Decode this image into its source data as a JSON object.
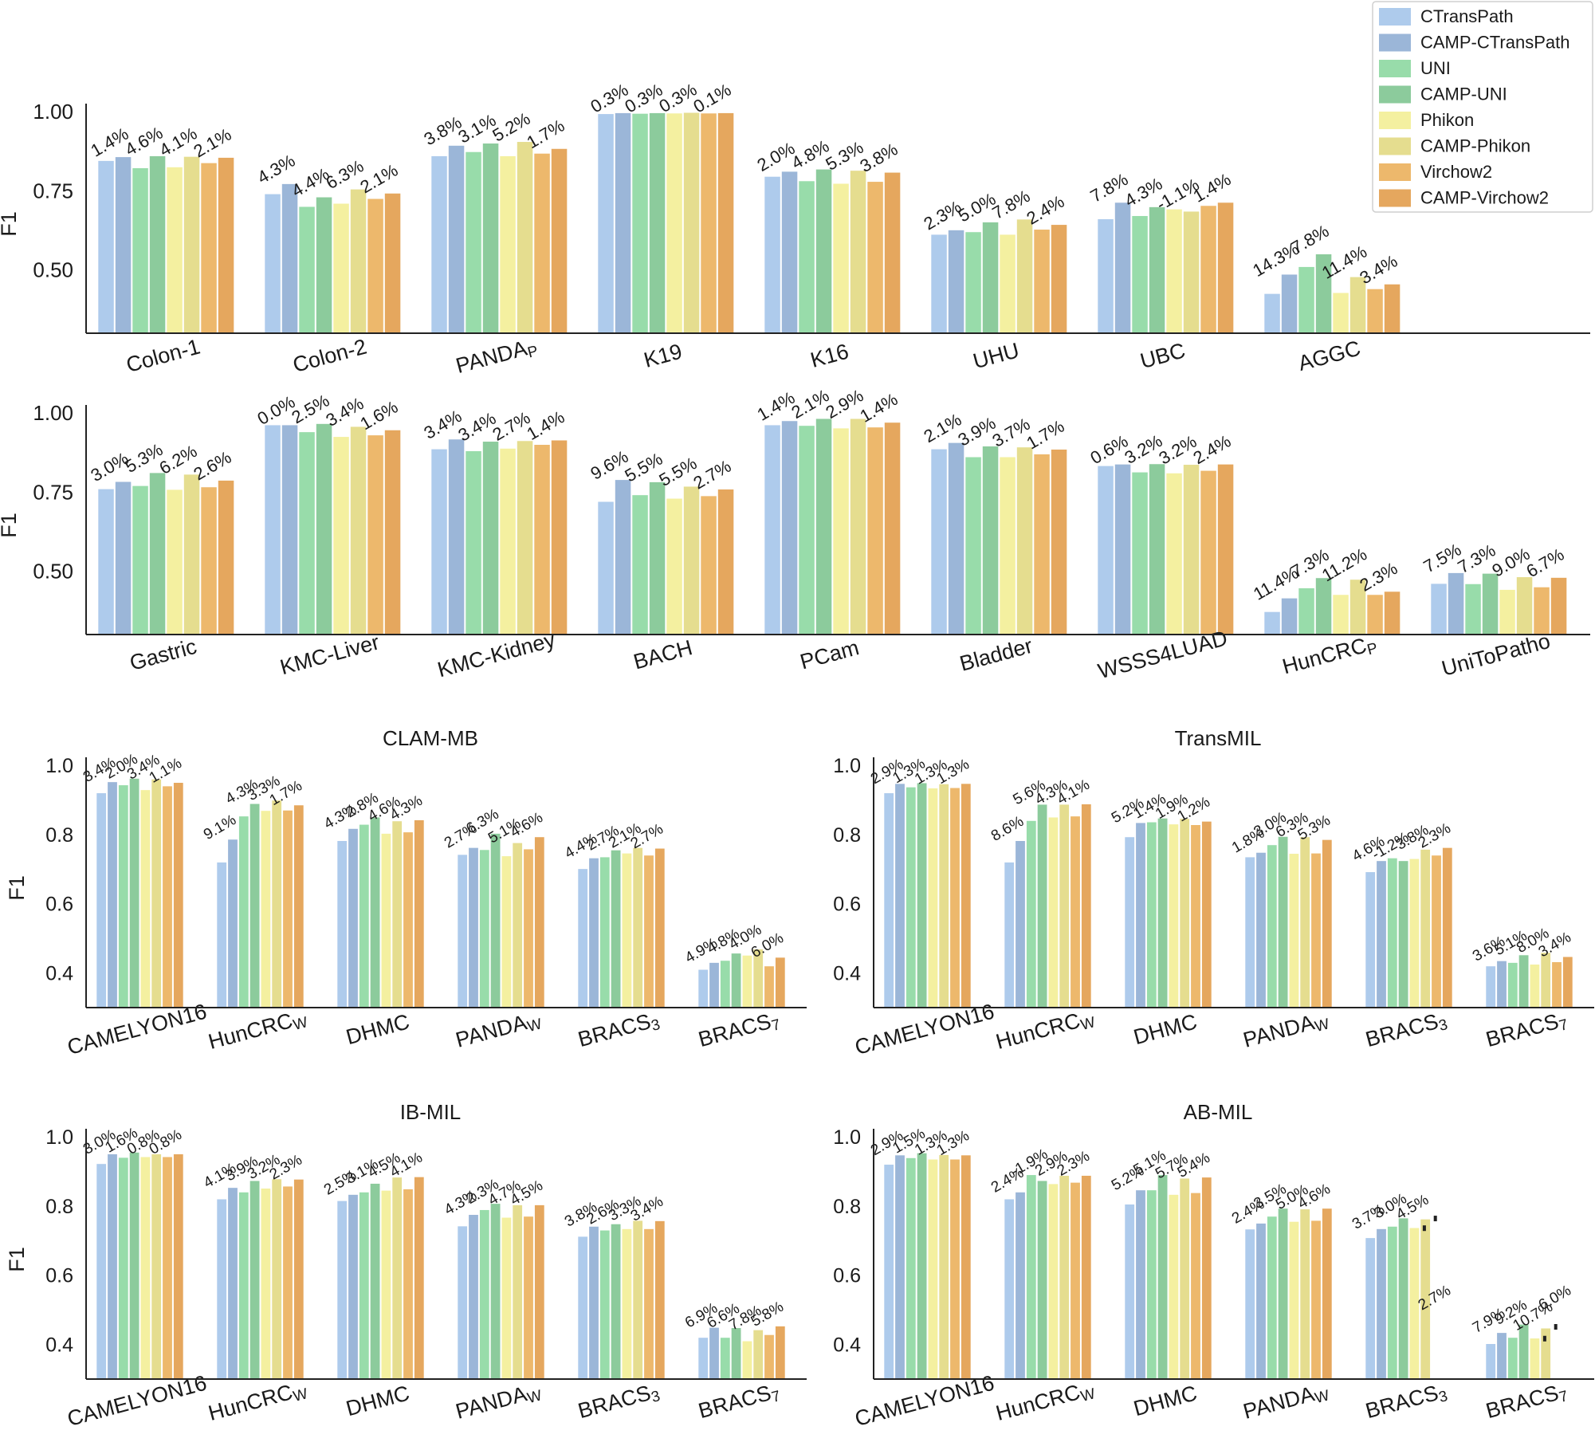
{
  "colors": [
    "#aecbec",
    "#9bb6d8",
    "#98dcaa",
    "#8ccb9c",
    "#f4f0a0",
    "#e5dd8f",
    "#edb86c",
    "#e5a75e"
  ],
  "legend": [
    "CTransPath",
    "CAMP-CTransPath",
    "UNI",
    "CAMP-UNI",
    "Phikon",
    "CAMP-Phikon",
    "Virchow2",
    "CAMP-Virchow2"
  ],
  "chart_data": [
    {
      "type": "bar",
      "title": "",
      "ylabel": "F1",
      "ylim": [
        0.3,
        1.0
      ],
      "yticks": [
        "0.50",
        "0.75",
        "1.00"
      ],
      "categories": [
        {
          "text": "Colon-1",
          "sub": ""
        },
        {
          "text": "Colon-2",
          "sub": ""
        },
        {
          "text": "PANDA",
          "sub": "P"
        },
        {
          "text": "K19",
          "sub": ""
        },
        {
          "text": "K16",
          "sub": ""
        },
        {
          "text": "UHU",
          "sub": ""
        },
        {
          "text": "UBC",
          "sub": ""
        },
        {
          "text": "AGGC",
          "sub": ""
        }
      ],
      "values": [
        [
          0.845,
          0.857,
          0.822,
          0.86,
          0.825,
          0.858,
          0.838,
          0.855
        ],
        [
          0.74,
          0.772,
          0.7,
          0.73,
          0.71,
          0.755,
          0.725,
          0.742
        ],
        [
          0.86,
          0.893,
          0.873,
          0.9,
          0.86,
          0.905,
          0.868,
          0.883
        ],
        [
          0.993,
          0.996,
          0.994,
          0.996,
          0.995,
          0.997,
          0.995,
          0.996
        ],
        [
          0.795,
          0.811,
          0.781,
          0.818,
          0.773,
          0.814,
          0.779,
          0.808
        ],
        [
          0.612,
          0.626,
          0.62,
          0.651,
          0.612,
          0.66,
          0.628,
          0.643
        ],
        [
          0.661,
          0.713,
          0.671,
          0.699,
          0.692,
          0.685,
          0.703,
          0.713
        ],
        [
          0.425,
          0.486,
          0.51,
          0.55,
          0.428,
          0.478,
          0.44,
          0.455
        ]
      ],
      "improvements": [
        [
          "1.4%",
          "4.6%",
          "4.1%",
          "2.1%"
        ],
        [
          "4.3%",
          "4.4%",
          "6.3%",
          "2.1%"
        ],
        [
          "3.8%",
          "3.1%",
          "5.2%",
          "1.7%"
        ],
        [
          "0.3%",
          "0.3%",
          "0.3%",
          "0.1%"
        ],
        [
          "2.0%",
          "4.8%",
          "5.3%",
          "3.8%"
        ],
        [
          "2.3%",
          "5.0%",
          "7.8%",
          "2.4%"
        ],
        [
          "7.8%",
          "4.3%",
          "-1.1%",
          "1.4%"
        ],
        [
          "14.3%",
          "7.8%",
          "11.4%",
          "3.4%"
        ]
      ]
    },
    {
      "type": "bar",
      "title": "",
      "ylabel": "F1",
      "ylim": [
        0.3,
        1.0
      ],
      "yticks": [
        "0.50",
        "0.75",
        "1.00"
      ],
      "categories": [
        {
          "text": "Gastric",
          "sub": ""
        },
        {
          "text": "KMC-Liver",
          "sub": ""
        },
        {
          "text": "KMC-Kidney",
          "sub": ""
        },
        {
          "text": "BACH",
          "sub": ""
        },
        {
          "text": "PCam",
          "sub": ""
        },
        {
          "text": "Bladder",
          "sub": ""
        },
        {
          "text": "WSSS4LUAD",
          "sub": ""
        },
        {
          "text": "HunCRC",
          "sub": "P"
        },
        {
          "text": "UniToPatho",
          "sub": ""
        }
      ],
      "values": [
        [
          0.76,
          0.783,
          0.77,
          0.811,
          0.758,
          0.806,
          0.766,
          0.787
        ],
        [
          0.962,
          0.962,
          0.94,
          0.966,
          0.925,
          0.957,
          0.93,
          0.946
        ],
        [
          0.886,
          0.917,
          0.88,
          0.91,
          0.888,
          0.912,
          0.9,
          0.914
        ],
        [
          0.72,
          0.789,
          0.741,
          0.782,
          0.73,
          0.768,
          0.738,
          0.759
        ],
        [
          0.962,
          0.975,
          0.96,
          0.982,
          0.952,
          0.982,
          0.955,
          0.97
        ],
        [
          0.886,
          0.906,
          0.861,
          0.895,
          0.861,
          0.892,
          0.87,
          0.885
        ],
        [
          0.833,
          0.838,
          0.813,
          0.839,
          0.81,
          0.837,
          0.818,
          0.838
        ],
        [
          0.372,
          0.415,
          0.447,
          0.479,
          0.426,
          0.474,
          0.426,
          0.436
        ],
        [
          0.461,
          0.495,
          0.46,
          0.493,
          0.442,
          0.482,
          0.45,
          0.48
        ]
      ],
      "improvements": [
        [
          "3.0%",
          "5.3%",
          "6.2%",
          "2.6%"
        ],
        [
          "0.0%",
          "2.5%",
          "3.4%",
          "1.6%"
        ],
        [
          "3.4%",
          "3.4%",
          "2.7%",
          "1.4%"
        ],
        [
          "9.6%",
          "5.5%",
          "5.5%",
          "2.7%"
        ],
        [
          "1.4%",
          "2.1%",
          "2.9%",
          "1.4%"
        ],
        [
          "2.1%",
          "3.9%",
          "3.7%",
          "1.7%"
        ],
        [
          "0.6%",
          "3.2%",
          "3.2%",
          "2.4%"
        ],
        [
          "11.4%",
          "7.3%",
          "11.2%",
          "2.3%"
        ],
        [
          "7.5%",
          "7.3%",
          "9.0%",
          "6.7%"
        ]
      ]
    },
    {
      "type": "bar",
      "title": "CLAM-MB",
      "ylabel": "F1",
      "ylim": [
        0.3,
        1.0
      ],
      "yticks": [
        "0.4",
        "0.6",
        "0.8",
        "1.0"
      ],
      "categories": [
        {
          "text": "CAMELYON16",
          "sub": ""
        },
        {
          "text": "HunCRC",
          "sub": "W"
        },
        {
          "text": "DHMC",
          "sub": ""
        },
        {
          "text": "PANDA",
          "sub": "W"
        },
        {
          "text": "BRACS",
          "sub": "3"
        },
        {
          "text": "BRACS",
          "sub": "7"
        }
      ],
      "values": [
        [
          0.92,
          0.952,
          0.943,
          0.962,
          0.929,
          0.96,
          0.94,
          0.95
        ],
        [
          0.72,
          0.786,
          0.853,
          0.889,
          0.869,
          0.899,
          0.87,
          0.885
        ],
        [
          0.782,
          0.817,
          0.829,
          0.85,
          0.803,
          0.839,
          0.807,
          0.842
        ],
        [
          0.742,
          0.762,
          0.756,
          0.803,
          0.738,
          0.776,
          0.758,
          0.793
        ],
        [
          0.701,
          0.732,
          0.735,
          0.755,
          0.746,
          0.762,
          0.74,
          0.76
        ],
        [
          0.41,
          0.43,
          0.436,
          0.457,
          0.451,
          0.469,
          0.42,
          0.445
        ]
      ],
      "improvements": [
        [
          "3.4%",
          "2.0%",
          "3.4%",
          "1.1%"
        ],
        [
          "9.1%",
          "4.3%",
          "3.3%",
          "1.7%"
        ],
        [
          "4.3%",
          "2.8%",
          "4.6%",
          "4.3%"
        ],
        [
          "2.7%",
          "6.3%",
          "5.1%",
          "4.6%"
        ],
        [
          "4.4%",
          "2.7%",
          "2.1%",
          "2.7%"
        ],
        [
          "4.9%",
          "4.8%",
          "4.0%",
          "6.0%"
        ]
      ]
    },
    {
      "type": "bar",
      "title": "TransMIL",
      "ylabel": "",
      "ylim": [
        0.3,
        1.0
      ],
      "yticks": [
        "0.4",
        "0.6",
        "0.8",
        "1.0"
      ],
      "categories": [
        {
          "text": "CAMELYON16",
          "sub": ""
        },
        {
          "text": "HunCRC",
          "sub": "W"
        },
        {
          "text": "DHMC",
          "sub": ""
        },
        {
          "text": "PANDA",
          "sub": "W"
        },
        {
          "text": "BRACS",
          "sub": "3"
        },
        {
          "text": "BRACS",
          "sub": "7"
        }
      ],
      "values": [
        [
          0.92,
          0.947,
          0.937,
          0.949,
          0.934,
          0.946,
          0.935,
          0.947
        ],
        [
          0.72,
          0.782,
          0.84,
          0.887,
          0.85,
          0.887,
          0.853,
          0.888
        ],
        [
          0.793,
          0.834,
          0.836,
          0.847,
          0.83,
          0.846,
          0.828,
          0.838
        ],
        [
          0.735,
          0.748,
          0.77,
          0.794,
          0.745,
          0.793,
          0.746,
          0.785
        ],
        [
          0.692,
          0.724,
          0.732,
          0.724,
          0.73,
          0.757,
          0.74,
          0.762
        ],
        [
          0.42,
          0.435,
          0.43,
          0.452,
          0.425,
          0.459,
          0.432,
          0.447
        ]
      ],
      "improvements": [
        [
          "2.9%",
          "1.3%",
          "1.3%",
          "1.3%"
        ],
        [
          "8.6%",
          "5.6%",
          "4.3%",
          "4.1%"
        ],
        [
          "5.2%",
          "1.4%",
          "1.9%",
          "1.2%"
        ],
        [
          "1.8%",
          "3.0%",
          "6.3%",
          "5.3%"
        ],
        [
          "4.6%",
          "-1.2%",
          "3.8%",
          "2.3%"
        ],
        [
          "3.6%",
          "5.1%",
          "8.0%",
          "3.4%"
        ]
      ]
    },
    {
      "type": "bar",
      "title": "IB-MIL",
      "ylabel": "F1",
      "ylim": [
        0.3,
        1.0
      ],
      "yticks": [
        "0.4",
        "0.6",
        "0.8",
        "1.0"
      ],
      "categories": [
        {
          "text": "CAMELYON16",
          "sub": ""
        },
        {
          "text": "HunCRC",
          "sub": "W"
        },
        {
          "text": "DHMC",
          "sub": ""
        },
        {
          "text": "PANDA",
          "sub": "W"
        },
        {
          "text": "BRACS",
          "sub": "3"
        },
        {
          "text": "BRACS",
          "sub": "7"
        }
      ],
      "values": [
        [
          0.922,
          0.95,
          0.94,
          0.955,
          0.942,
          0.95,
          0.942,
          0.95
        ],
        [
          0.82,
          0.853,
          0.84,
          0.873,
          0.851,
          0.878,
          0.857,
          0.877
        ],
        [
          0.815,
          0.833,
          0.84,
          0.865,
          0.845,
          0.883,
          0.849,
          0.884
        ],
        [
          0.742,
          0.775,
          0.789,
          0.807,
          0.767,
          0.803,
          0.77,
          0.803
        ],
        [
          0.712,
          0.741,
          0.73,
          0.748,
          0.734,
          0.758,
          0.734,
          0.757
        ],
        [
          0.42,
          0.449,
          0.42,
          0.448,
          0.41,
          0.442,
          0.428,
          0.453
        ]
      ],
      "improvements": [
        [
          "3.0%",
          "1.6%",
          "0.8%",
          "0.8%"
        ],
        [
          "4.1%",
          "3.9%",
          "3.2%",
          "2.3%"
        ],
        [
          "2.5%",
          "3.1%",
          "4.5%",
          "4.1%"
        ],
        [
          "4.3%",
          "2.3%",
          "4.7%",
          "4.5%"
        ],
        [
          "3.8%",
          "2.6%",
          "3.3%",
          "3.4%"
        ],
        [
          "6.9%",
          "6.6%",
          "7.8%",
          "5.8%"
        ]
      ]
    },
    {
      "type": "bar",
      "title": "AB-MIL",
      "ylabel": "",
      "ylim": [
        0.3,
        1.0
      ],
      "yticks": [
        "0.4",
        "0.6",
        "0.8",
        "1.0"
      ],
      "categories": [
        {
          "text": "CAMELYON16",
          "sub": ""
        },
        {
          "text": "HunCRC",
          "sub": "W"
        },
        {
          "text": "DHMC",
          "sub": ""
        },
        {
          "text": "PANDA",
          "sub": "W"
        },
        {
          "text": "BRACS",
          "sub": "3"
        },
        {
          "text": "BRACS",
          "sub": "7"
        }
      ],
      "values": [
        [
          0.92,
          0.947,
          0.939,
          0.953,
          0.935,
          0.948,
          0.935,
          0.947
        ],
        [
          0.82,
          0.84,
          0.89,
          0.873,
          0.864,
          0.888,
          0.868,
          0.888
        ],
        [
          0.805,
          0.846,
          0.846,
          0.89,
          0.833,
          0.88,
          0.838,
          0.883
        ],
        [
          0.733,
          0.75,
          0.77,
          0.793,
          0.755,
          0.791,
          0.758,
          0.793
        ],
        [
          0.708,
          0.734,
          0.741,
          0.765,
          0.737,
          0.762,
          null,
          null
        ],
        [
          0.402,
          0.434,
          0.42,
          0.458,
          0.418,
          0.447,
          null,
          null
        ]
      ],
      "improvements": [
        [
          "2.9%",
          "1.5%",
          "1.3%",
          "1.3%"
        ],
        [
          "2.4%",
          "-1.9%",
          "2.9%",
          "2.3%"
        ],
        [
          "5.2%",
          "5.1%",
          "5.7%",
          "5.4%"
        ],
        [
          "2.4%",
          "3.5%",
          "5.0%",
          "4.6%"
        ],
        [
          "3.7%",
          "3.0%",
          "4.5%",
          "2.7%"
        ],
        [
          "7.9%",
          "9.2%",
          "10.7%",
          "6.0%"
        ]
      ]
    }
  ]
}
